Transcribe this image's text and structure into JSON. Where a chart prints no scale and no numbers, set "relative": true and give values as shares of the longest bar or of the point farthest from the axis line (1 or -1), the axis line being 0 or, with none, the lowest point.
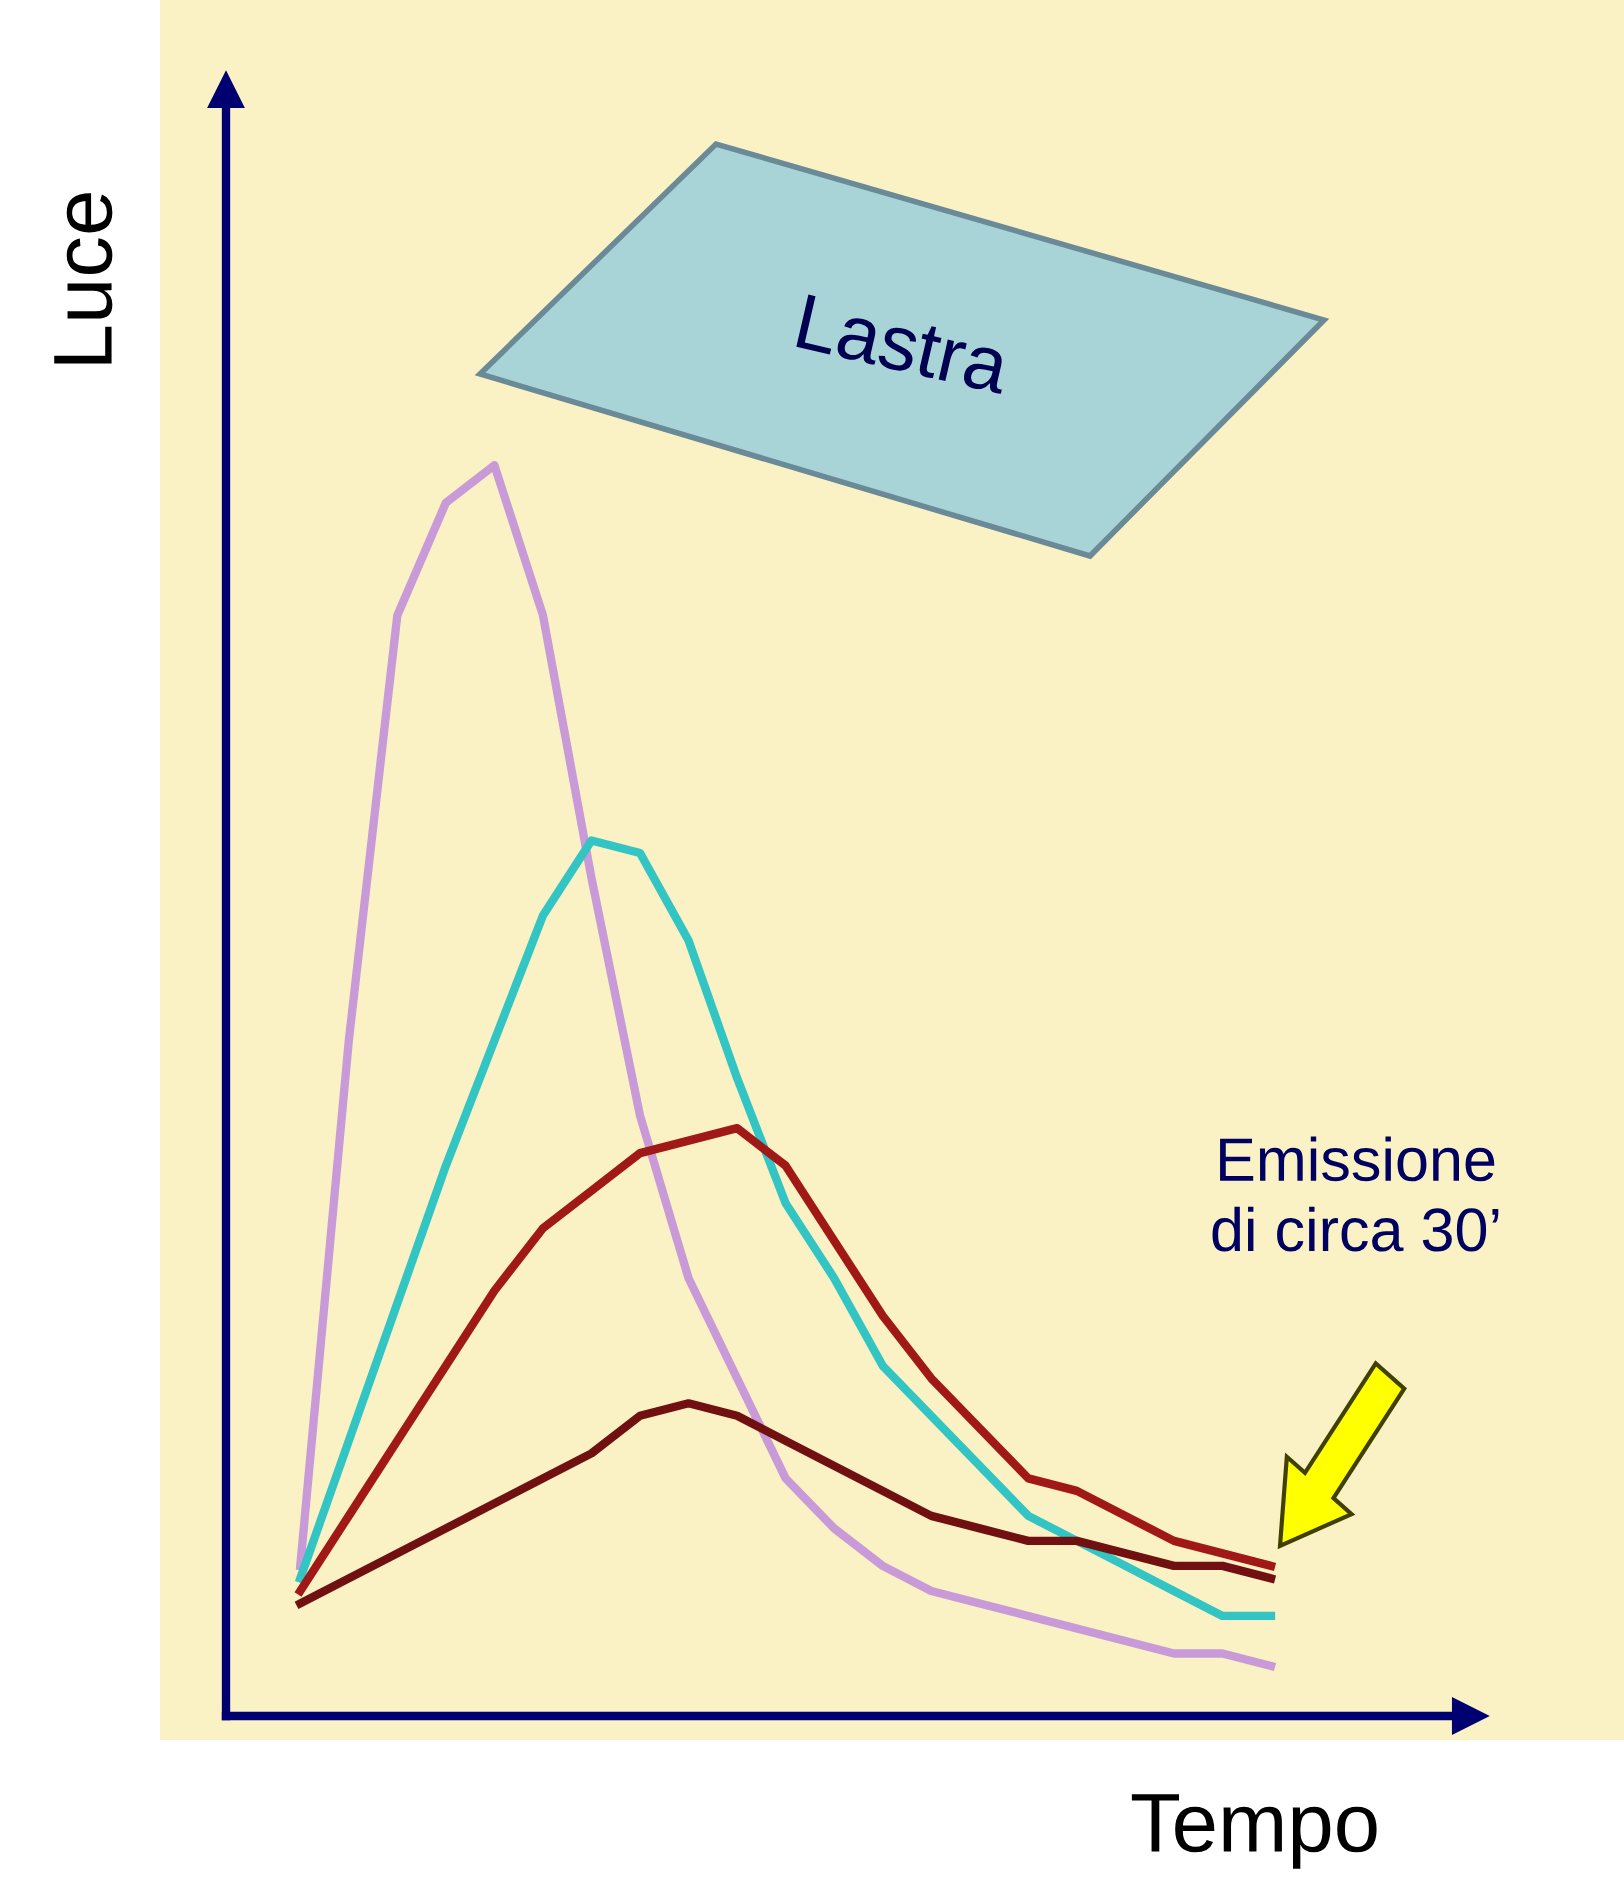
{
  "chart_data": {
    "type": "line",
    "relative": true,
    "xlabel": "Tempo",
    "ylabel": "Luce",
    "grid": false,
    "marker": "none",
    "line_style": "solid",
    "categories": [
      null,
      null,
      null,
      null,
      null,
      null,
      null,
      null,
      null,
      null,
      null,
      null,
      null,
      null,
      null,
      null,
      null,
      null,
      null,
      null,
      null
    ],
    "series": [
      {
        "color": "#c89ad8",
        "values": [
          0.12,
          0.54,
          0.88,
          0.97,
          1.0,
          0.88,
          0.67,
          0.48,
          0.35,
          0.27,
          0.19,
          0.15,
          0.12,
          0.1,
          0.09,
          0.08,
          0.07,
          0.06,
          0.05,
          0.05,
          0.04
        ]
      },
      {
        "color": "#33c4c4",
        "values": [
          0.11,
          0.22,
          0.33,
          0.44,
          0.54,
          0.64,
          0.7,
          0.69,
          0.62,
          0.51,
          0.41,
          0.35,
          0.28,
          0.24,
          0.2,
          0.16,
          0.14,
          0.12,
          0.1,
          0.08,
          0.08
        ]
      },
      {
        "color": "#a01818",
        "values": [
          0.1,
          0.16,
          0.22,
          0.28,
          0.34,
          0.39,
          0.42,
          0.45,
          0.46,
          0.47,
          0.44,
          0.38,
          0.32,
          0.27,
          0.23,
          0.19,
          0.18,
          0.16,
          0.14,
          0.13,
          0.12
        ]
      },
      {
        "color": "#701010",
        "values": [
          0.09,
          0.11,
          0.13,
          0.15,
          0.17,
          0.19,
          0.21,
          0.24,
          0.25,
          0.24,
          0.22,
          0.2,
          0.18,
          0.16,
          0.15,
          0.14,
          0.14,
          0.13,
          0.12,
          0.12,
          0.11
        ]
      }
    ],
    "annotations": [
      "Lastra",
      "Emissione\ndi circa 30’"
    ]
  }
}
